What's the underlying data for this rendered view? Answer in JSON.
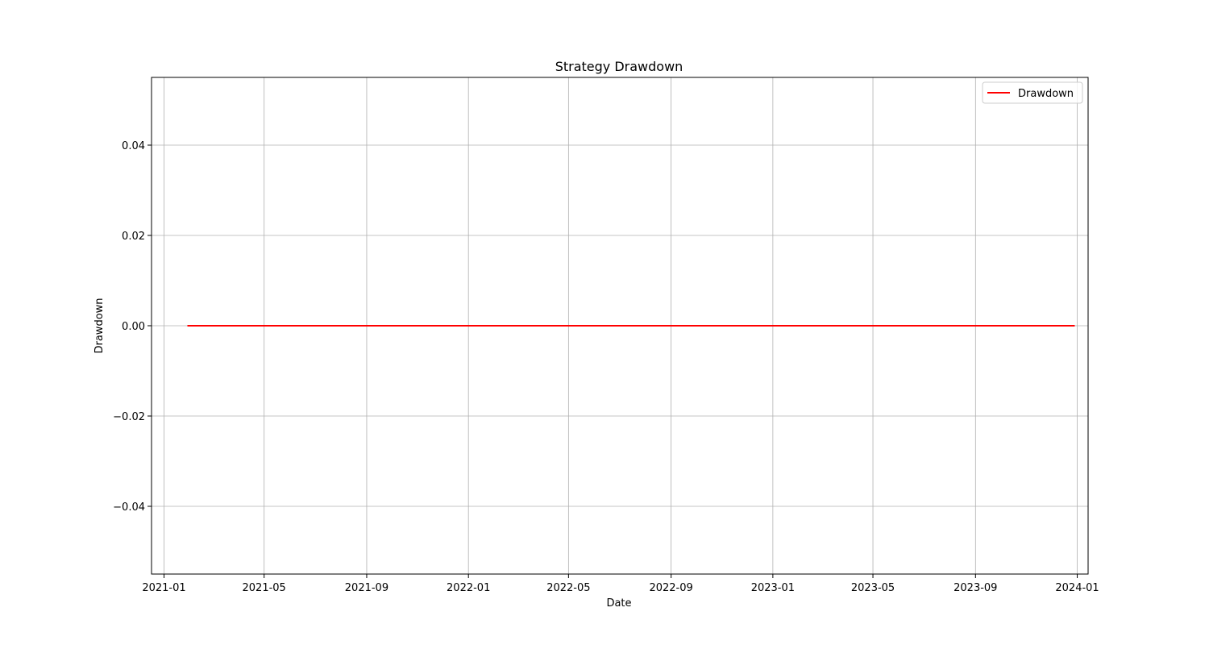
{
  "chart_data": {
    "type": "line",
    "title": "Strategy Drawdown",
    "xlabel": "Date",
    "ylabel": "Drawdown",
    "x_type": "date",
    "xlim": [
      "2020-12-17",
      "2024-01-14"
    ],
    "ylim": [
      -0.055,
      0.055
    ],
    "x_ticks": [
      "2021-01-01",
      "2021-05-01",
      "2021-09-01",
      "2022-01-01",
      "2022-05-01",
      "2022-09-01",
      "2023-01-01",
      "2023-05-01",
      "2023-09-01",
      "2024-01-01"
    ],
    "x_tick_labels": [
      "2021-01",
      "2021-05",
      "2021-09",
      "2022-01",
      "2022-05",
      "2022-09",
      "2023-01",
      "2023-05",
      "2023-09",
      "2024-01"
    ],
    "y_ticks": [
      -0.04,
      -0.02,
      0.0,
      0.02,
      0.04
    ],
    "y_tick_labels": [
      "−0.04",
      "−0.02",
      "0.00",
      "0.02",
      "0.04"
    ],
    "grid": true,
    "legend_position": "top-right",
    "series": [
      {
        "name": "Drawdown",
        "color": "#ff0000",
        "x": [
          "2021-01-29",
          "2023-12-29"
        ],
        "y": [
          0.0,
          0.0
        ]
      }
    ]
  }
}
